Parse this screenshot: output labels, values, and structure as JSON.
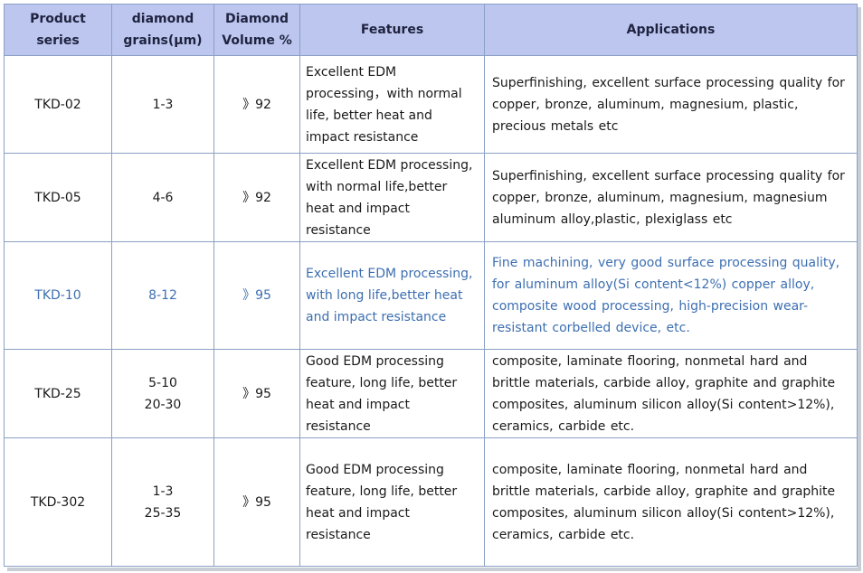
{
  "headers": [
    "Product series",
    "diamond grains(μm)",
    "Diamond Volume %",
    "Features",
    "Applications"
  ],
  "header_lines": [
    [
      "Product",
      "series"
    ],
    [
      "diamond",
      "grains(μm)"
    ],
    [
      "Diamond",
      "Volume %"
    ],
    [
      "Features"
    ],
    [
      "Applications"
    ]
  ],
  "rows": [
    {
      "series": "TKD-02",
      "grains": [
        "1-3"
      ],
      "volume": "》92",
      "features": "Excellent EDM processing，with normal life, better heat and impact resistance",
      "applications": "Superfinishing, excellent surface processing quality for copper, bronze, aluminum, magnesium, plastic, precious metals etc",
      "highlight": false
    },
    {
      "series": "TKD-05",
      "grains": [
        "4-6"
      ],
      "volume": "》92",
      "features": "Excellent EDM processing, with normal life,better heat and impact resistance",
      "applications": "Superfinishing, excellent surface processing quality for copper, bronze, aluminum, magnesium, magnesium aluminum alloy,plastic, plexiglass etc",
      "highlight": false
    },
    {
      "series": "TKD-10",
      "grains": [
        "8-12"
      ],
      "volume": "》95",
      "features": "Excellent EDM processing, with long life,better heat and impact resistance",
      "applications": "Fine machining, very good surface processing quality, for aluminum alloy(Si content<12%) copper alloy, composite wood processing, high-precision wear-resistant corbelled device, etc.",
      "highlight": true
    },
    {
      "series": "TKD-25",
      "grains": [
        "5-10",
        "20-30"
      ],
      "volume": "》95",
      "features": "Good EDM processing feature, long life, better heat and impact resistance",
      "applications": "composite, laminate flooring, nonmetal hard and brittle materials, carbide alloy, graphite and graphite composites, aluminum silicon alloy(Si content>12%), ceramics, carbide etc.",
      "highlight": false
    },
    {
      "series": "TKD-302",
      "grains": [
        "1-3",
        "25-35"
      ],
      "volume": "》95",
      "features": "Good EDM processing feature, long life, better heat and impact resistance",
      "applications": "composite, laminate flooring, nonmetal hard and brittle materials, carbide alloy, graphite and graphite composites, aluminum silicon alloy(Si content>12%), ceramics, carbide etc.",
      "highlight": false
    }
  ],
  "colors": {
    "header_bg": "#bcc6ee",
    "border": "#8aa0c4",
    "highlight_text": "#3d6fb1"
  }
}
